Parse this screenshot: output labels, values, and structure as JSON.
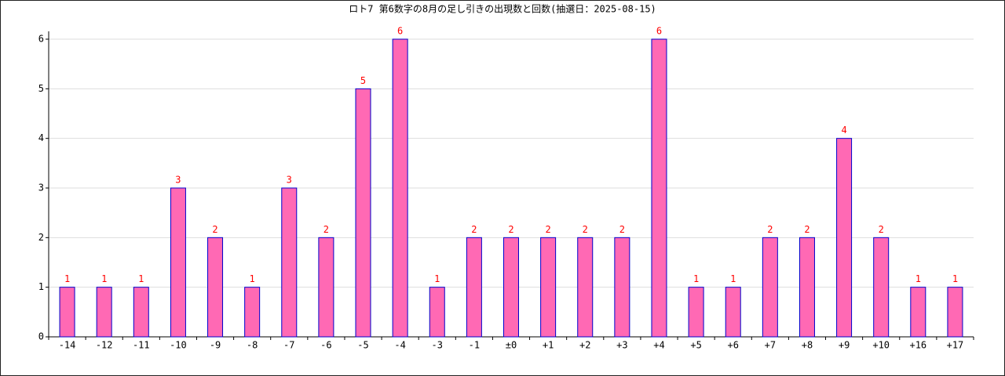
{
  "chart_data": {
    "type": "bar",
    "title": "ロト7 第6数字の8月の足し引きの出現数と回数(抽選日：2025-08-15)",
    "categories": [
      "-14",
      "-12",
      "-11",
      "-10",
      "-9",
      "-8",
      "-7",
      "-6",
      "-5",
      "-4",
      "-3",
      "-1",
      "±0",
      "+1",
      "+2",
      "+3",
      "+4",
      "+5",
      "+6",
      "+7",
      "+8",
      "+9",
      "+10",
      "+16",
      "+17"
    ],
    "values": [
      1,
      1,
      1,
      3,
      2,
      1,
      3,
      2,
      5,
      6,
      1,
      2,
      2,
      2,
      2,
      2,
      6,
      1,
      1,
      2,
      2,
      4,
      2,
      1,
      1
    ],
    "color": "#ff69b4",
    "edge_color": "#0000cc",
    "label_color": "#ff0000",
    "ylim": [
      0,
      6
    ],
    "yticks": [
      0,
      1,
      2,
      3,
      4,
      5,
      6
    ],
    "grid": true
  }
}
